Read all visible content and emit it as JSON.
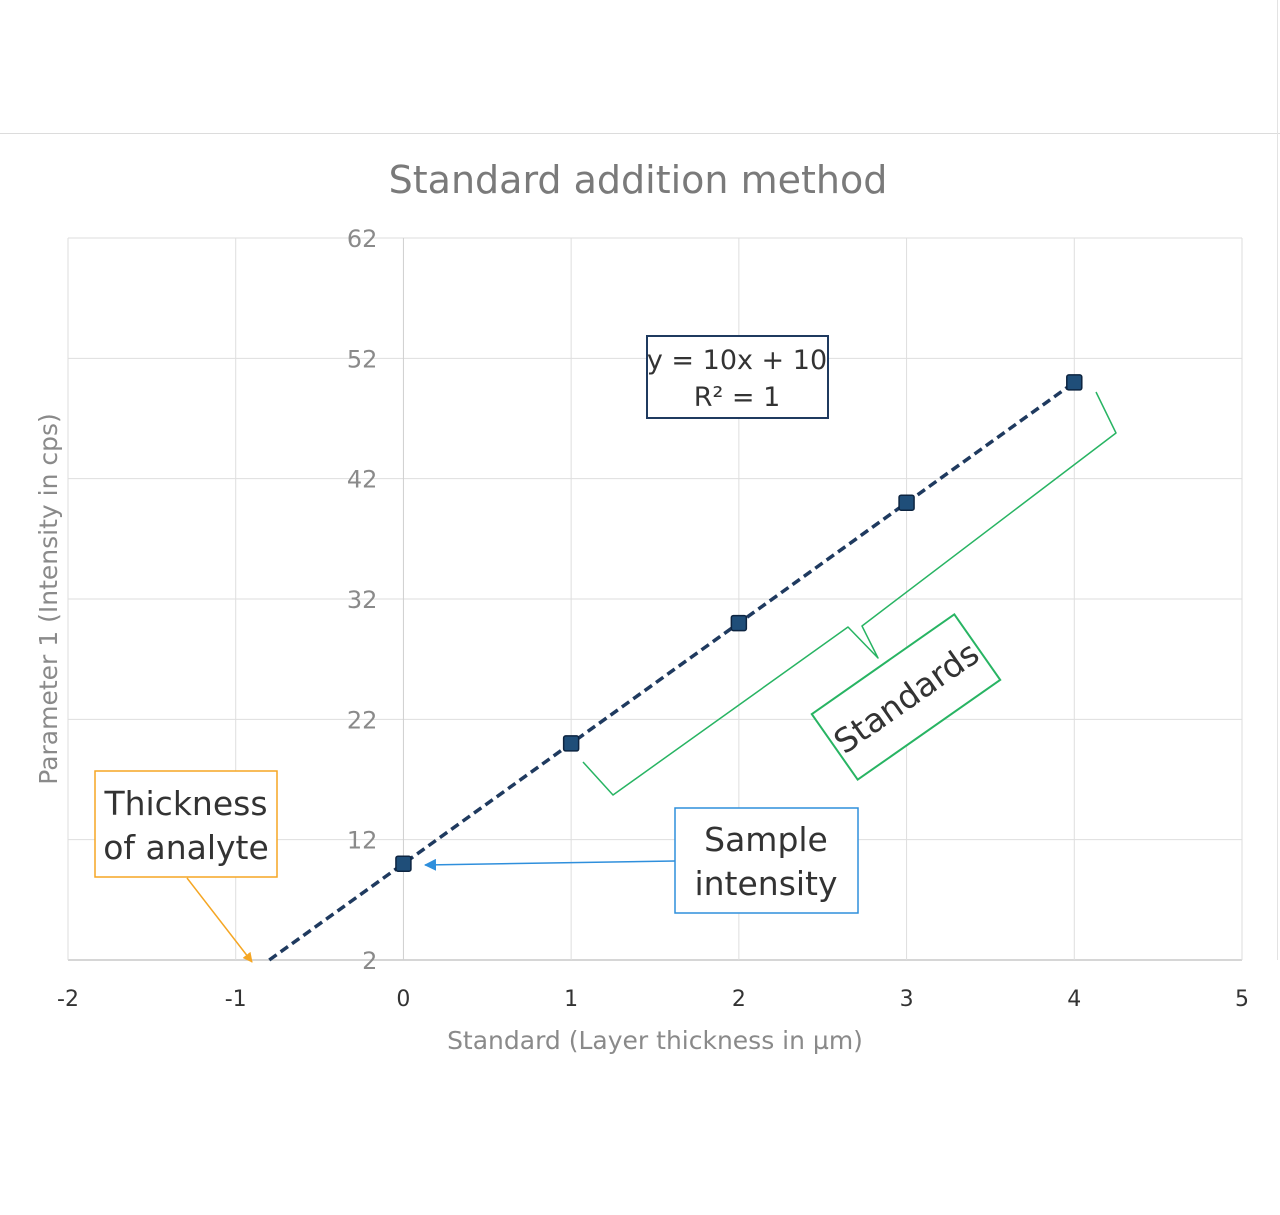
{
  "chart_data": {
    "type": "scatter",
    "title": "Standard addition method",
    "xlabel": "Standard (Layer thickness in µm)",
    "ylabel": "Parameter 1 (Intensity in cps)",
    "xlim": [
      -2,
      5
    ],
    "ylim": [
      2,
      62
    ],
    "x_ticks": [
      "-2",
      "-1",
      "0",
      "1",
      "2",
      "3",
      "4",
      "5"
    ],
    "y_ticks": [
      "2",
      "12",
      "22",
      "32",
      "42",
      "52",
      "62"
    ],
    "grid": true,
    "series": [
      {
        "x": [
          0,
          1,
          2,
          3,
          4
        ],
        "y": [
          10,
          20,
          30,
          40,
          50
        ],
        "color": "#1f4e79",
        "trendline": {
          "slope": 10,
          "intercept": 10,
          "x_start": -0.8,
          "x_end": 4,
          "style": "dashed",
          "color": "#1f3a5f"
        }
      }
    ],
    "equation_box": {
      "line1": "y = 10x + 10",
      "line2": "R² = 1",
      "border_color": "#1f3a5f"
    },
    "annotations": {
      "thickness": {
        "line1": "Thickness",
        "line2": "of analyte",
        "color": "#f5a623"
      },
      "sample": {
        "line1": "Sample",
        "line2": "intensity",
        "color": "#2f8fdc"
      },
      "standards": {
        "text": "Standards",
        "color": "#28b463"
      }
    }
  }
}
